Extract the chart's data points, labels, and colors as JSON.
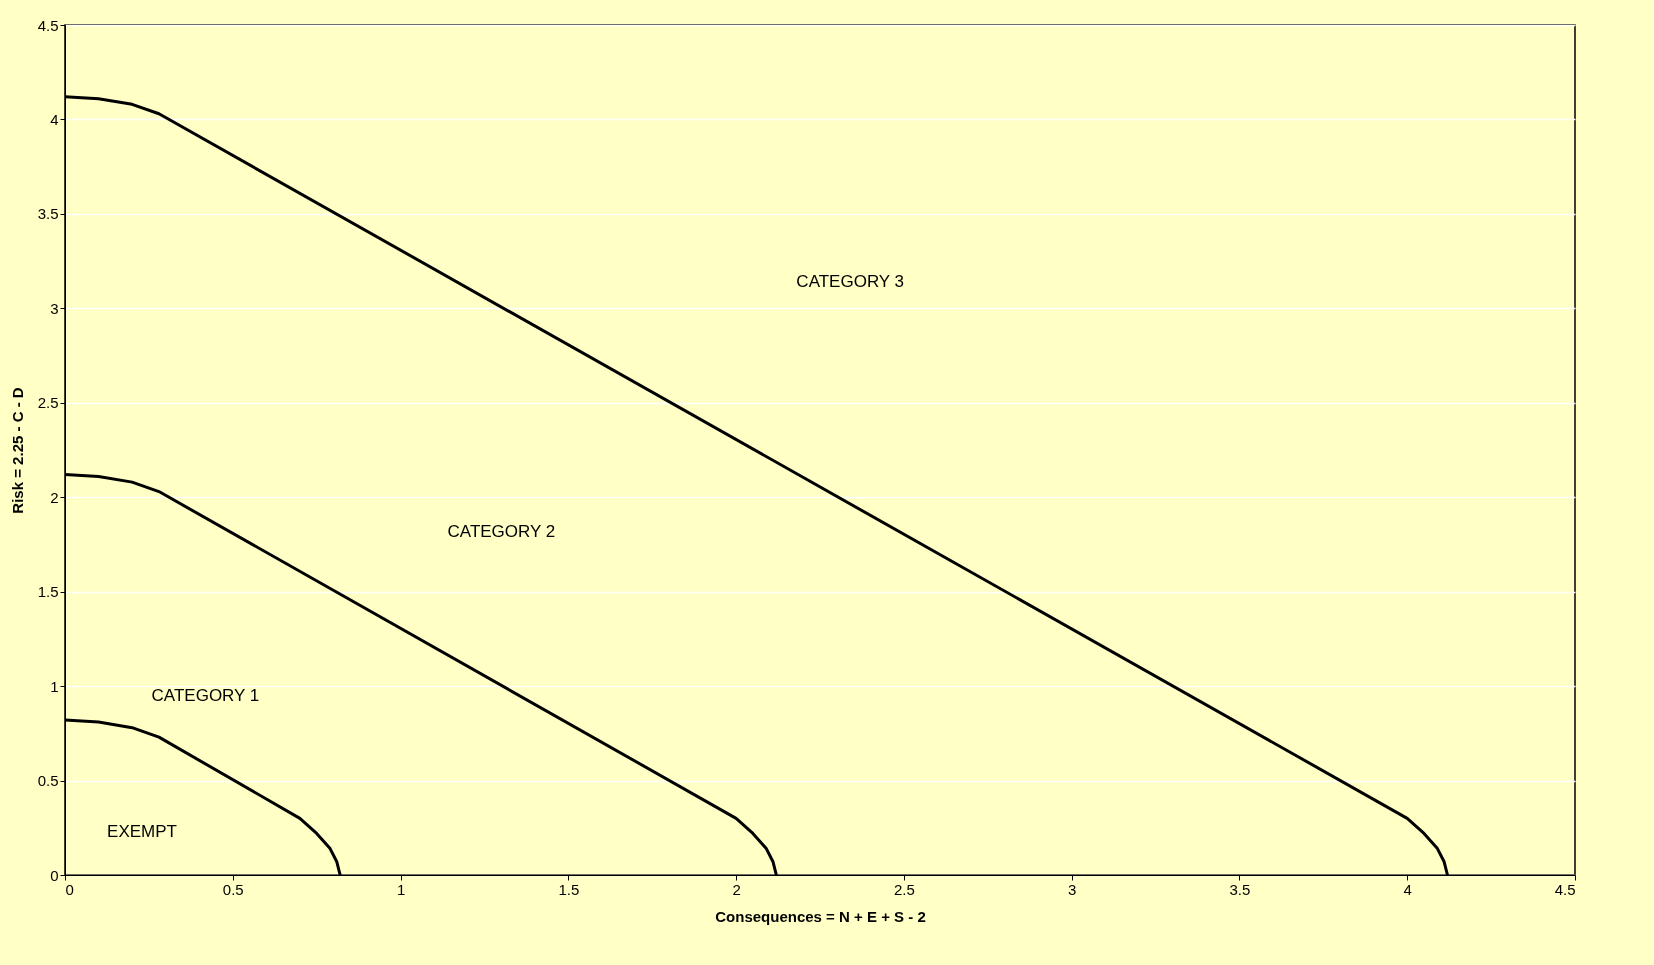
{
  "chart_data": {
    "type": "line",
    "xlabel": "Consequences = N + E + S - 2",
    "ylabel": "Risk = 2.25  - C - D",
    "xlim": [
      0,
      4.5
    ],
    "ylim": [
      0,
      4.5
    ],
    "xticks": [
      0,
      0.5,
      1,
      1.5,
      2,
      2.5,
      3,
      3.5,
      4,
      4.5
    ],
    "yticks": [
      0,
      0.5,
      1,
      1.5,
      2,
      2.5,
      3,
      3.5,
      4,
      4.5
    ],
    "grid": "y",
    "line_style": "solid",
    "series": [
      {
        "color": "#000000",
        "x": [
          0,
          0.1,
          0.2,
          0.28,
          0.7,
          0.75,
          0.79,
          0.81,
          0.82
        ],
        "values": [
          0.82,
          0.81,
          0.78,
          0.73,
          0.3,
          0.22,
          0.14,
          0.07,
          0
        ]
      },
      {
        "color": "#000000",
        "x": [
          0,
          0.1,
          0.2,
          0.28,
          2.0,
          2.05,
          2.09,
          2.11,
          2.12
        ],
        "values": [
          2.12,
          2.11,
          2.08,
          2.03,
          0.3,
          0.22,
          0.14,
          0.07,
          0
        ]
      },
      {
        "color": "#000000",
        "x": [
          0,
          0.1,
          0.2,
          0.28,
          4.0,
          4.05,
          4.09,
          4.11,
          4.12
        ],
        "values": [
          4.12,
          4.11,
          4.08,
          4.03,
          0.3,
          0.22,
          0.14,
          0.07,
          0
        ]
      }
    ],
    "annotations": [
      "CATEGORY 3",
      "CATEGORY 2",
      "CATEGORY 1",
      "EXEMPT"
    ]
  }
}
